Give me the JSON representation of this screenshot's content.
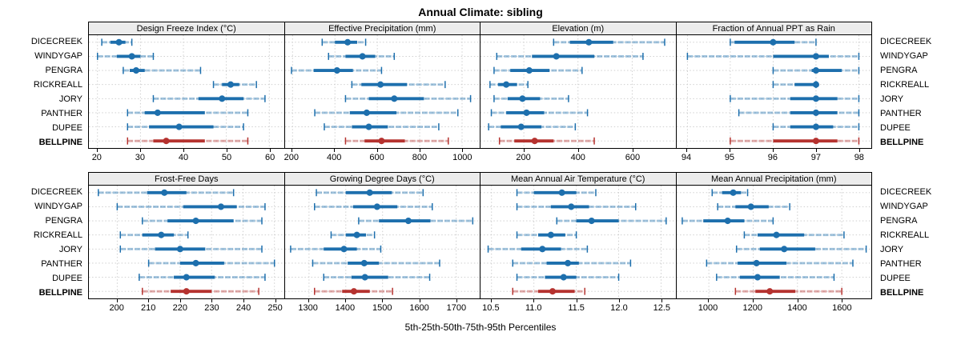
{
  "title": "Annual Climate: sibling",
  "caption": "5th-25th-50th-75th-95th Percentiles",
  "sites": [
    {
      "name": "DICECREEK",
      "bold": false
    },
    {
      "name": "WINDYGAP",
      "bold": false
    },
    {
      "name": "PENGRA",
      "bold": false
    },
    {
      "name": "RICKREALL",
      "bold": false
    },
    {
      "name": "JORY",
      "bold": false
    },
    {
      "name": "PANTHER",
      "bold": false
    },
    {
      "name": "DUPEE",
      "bold": false
    },
    {
      "name": "BELLPINE",
      "bold": true
    }
  ],
  "colors": {
    "series_default": "#1d6fad",
    "series_highlight": "#b5322f",
    "grid": "#c9c9c9",
    "strip_bg": "#ececec",
    "border": "#000000"
  },
  "chart_data": [
    {
      "type": "dotplot-percentiles",
      "title": "Design Freeze Index (°C)",
      "row": "top",
      "xlim": [
        18,
        63.4
      ],
      "ticks": {
        "values": [
          20,
          30,
          40,
          50,
          60
        ],
        "labels": [
          "20",
          "30",
          "40",
          "50",
          "60"
        ]
      },
      "percentile_labels": [
        "5th",
        "25th",
        "50th",
        "75th",
        "95th"
      ],
      "series": [
        {
          "site": "DICECREEK",
          "percentiles": [
            21,
            23,
            25,
            26.5,
            28
          ]
        },
        {
          "site": "WINDYGAP",
          "percentiles": [
            20,
            24.5,
            28,
            30,
            33
          ]
        },
        {
          "site": "PENGRA",
          "percentiles": [
            26,
            27.5,
            29,
            31,
            44
          ]
        },
        {
          "site": "RICKREALL",
          "percentiles": [
            47,
            49,
            51,
            53,
            57
          ]
        },
        {
          "site": "JORY",
          "percentiles": [
            33,
            43.5,
            49,
            54,
            59
          ]
        },
        {
          "site": "PANTHER",
          "percentiles": [
            27,
            31,
            34,
            45,
            55
          ]
        },
        {
          "site": "DUPEE",
          "percentiles": [
            27,
            32,
            39,
            47,
            54
          ]
        },
        {
          "site": "BELLPINE",
          "percentiles": [
            27,
            33,
            36,
            45,
            55
          ]
        }
      ]
    },
    {
      "type": "dotplot-percentiles",
      "title": "Effective Precipitation (mm)",
      "row": "top",
      "xlim": [
        165,
        1085
      ],
      "ticks": {
        "values": [
          200,
          400,
          600,
          800,
          1000
        ],
        "labels": [
          "200",
          "400",
          "600",
          "800",
          "1000"
        ]
      },
      "series": [
        {
          "site": "DICECREEK",
          "percentiles": [
            340,
            400,
            460,
            505,
            545
          ]
        },
        {
          "site": "WINDYGAP",
          "percentiles": [
            370,
            450,
            530,
            590,
            680
          ]
        },
        {
          "site": "PENGRA",
          "percentiles": [
            195,
            300,
            410,
            485,
            620
          ]
        },
        {
          "site": "RICKREALL",
          "percentiles": [
            480,
            525,
            615,
            740,
            920
          ]
        },
        {
          "site": "JORY",
          "percentiles": [
            450,
            560,
            680,
            820,
            1040
          ]
        },
        {
          "site": "PANTHER",
          "percentiles": [
            305,
            470,
            550,
            690,
            980
          ]
        },
        {
          "site": "DUPEE",
          "percentiles": [
            350,
            480,
            560,
            650,
            890
          ]
        },
        {
          "site": "BELLPINE",
          "percentiles": [
            450,
            540,
            620,
            730,
            935
          ]
        }
      ]
    },
    {
      "type": "dotplot-percentiles",
      "title": "Elevation (m)",
      "row": "top",
      "xlim": [
        40,
        760
      ],
      "ticks": {
        "values": [
          200,
          400,
          600
        ],
        "labels": [
          "200",
          "400",
          "600"
        ]
      },
      "series": [
        {
          "site": "DICECREEK",
          "percentiles": [
            310,
            370,
            440,
            530,
            720
          ]
        },
        {
          "site": "WINDYGAP",
          "percentiles": [
            100,
            230,
            320,
            460,
            640
          ]
        },
        {
          "site": "PENGRA",
          "percentiles": [
            90,
            150,
            220,
            295,
            415
          ]
        },
        {
          "site": "RICKREALL",
          "percentiles": [
            75,
            105,
            135,
            175,
            215
          ]
        },
        {
          "site": "JORY",
          "percentiles": [
            90,
            140,
            195,
            260,
            365
          ]
        },
        {
          "site": "PANTHER",
          "percentiles": [
            80,
            135,
            210,
            275,
            435
          ]
        },
        {
          "site": "DUPEE",
          "percentiles": [
            70,
            115,
            190,
            265,
            390
          ]
        },
        {
          "site": "BELLPINE",
          "percentiles": [
            110,
            165,
            240,
            310,
            460
          ]
        }
      ]
    },
    {
      "type": "dotplot-percentiles",
      "title": "Fraction of Annual PPT as Rain",
      "row": "top",
      "xlim": [
        93.75,
        98.3
      ],
      "ticks": {
        "values": [
          94,
          95,
          96,
          97,
          98
        ],
        "labels": [
          "94",
          "95",
          "96",
          "97",
          "98"
        ]
      },
      "series": [
        {
          "site": "DICECREEK",
          "percentiles": [
            95,
            95.1,
            96,
            96.5,
            97
          ]
        },
        {
          "site": "WINDYGAP",
          "percentiles": [
            94,
            96,
            97,
            97.3,
            98
          ]
        },
        {
          "site": "PENGRA",
          "percentiles": [
            96,
            96.9,
            97,
            97.6,
            98
          ]
        },
        {
          "site": "RICKREALL",
          "percentiles": [
            96,
            96.5,
            97,
            97,
            97
          ]
        },
        {
          "site": "JORY",
          "percentiles": [
            95,
            96.4,
            97,
            97.5,
            98
          ]
        },
        {
          "site": "PANTHER",
          "percentiles": [
            95.2,
            96.4,
            97,
            97.5,
            98
          ]
        },
        {
          "site": "DUPEE",
          "percentiles": [
            96,
            96.4,
            97,
            97.4,
            98
          ]
        },
        {
          "site": "BELLPINE",
          "percentiles": [
            95,
            96,
            97,
            97.5,
            98
          ]
        }
      ]
    },
    {
      "type": "dotplot-percentiles",
      "title": "Frost-Free Days",
      "row": "bottom",
      "xlim": [
        191,
        253
      ],
      "ticks": {
        "values": [
          200,
          210,
          220,
          230,
          240,
          250
        ],
        "labels": [
          "200",
          "210",
          "220",
          "230",
          "240",
          "250"
        ]
      },
      "series": [
        {
          "site": "DICECREEK",
          "percentiles": [
            194,
            209.5,
            215,
            222,
            237
          ]
        },
        {
          "site": "WINDYGAP",
          "percentiles": [
            200,
            221,
            233,
            238,
            247
          ]
        },
        {
          "site": "PENGRA",
          "percentiles": [
            208,
            216,
            225,
            237,
            246
          ]
        },
        {
          "site": "RICKREALL",
          "percentiles": [
            201,
            208,
            214,
            218,
            222.5
          ]
        },
        {
          "site": "JORY",
          "percentiles": [
            201,
            212,
            220,
            228,
            246
          ]
        },
        {
          "site": "PANTHER",
          "percentiles": [
            210,
            220,
            225,
            234,
            250
          ]
        },
        {
          "site": "DUPEE",
          "percentiles": [
            207,
            218,
            222,
            231,
            247
          ]
        },
        {
          "site": "BELLPINE",
          "percentiles": [
            208,
            217,
            222,
            230,
            245
          ]
        }
      ]
    },
    {
      "type": "dotplot-percentiles",
      "title": "Growing Degree Days (°C)",
      "row": "bottom",
      "xlim": [
        1235,
        1765
      ],
      "ticks": {
        "values": [
          1300,
          1400,
          1500,
          1600,
          1700
        ],
        "labels": [
          "1300",
          "1400",
          "1500",
          "1600",
          "1700"
        ]
      },
      "series": [
        {
          "site": "DICECREEK",
          "percentiles": [
            1320,
            1400,
            1465,
            1525,
            1610
          ]
        },
        {
          "site": "WINDYGAP",
          "percentiles": [
            1315,
            1420,
            1485,
            1540,
            1635
          ]
        },
        {
          "site": "PENGRA",
          "percentiles": [
            1435,
            1490,
            1570,
            1630,
            1745
          ]
        },
        {
          "site": "RICKREALL",
          "percentiles": [
            1360,
            1400,
            1430,
            1455,
            1478
          ]
        },
        {
          "site": "JORY",
          "percentiles": [
            1250,
            1340,
            1395,
            1430,
            1495
          ]
        },
        {
          "site": "PANTHER",
          "percentiles": [
            1310,
            1405,
            1450,
            1490,
            1655
          ]
        },
        {
          "site": "DUPEE",
          "percentiles": [
            1340,
            1415,
            1452,
            1515,
            1628
          ]
        },
        {
          "site": "BELLPINE",
          "percentiles": [
            1315,
            1390,
            1422,
            1465,
            1527
          ]
        }
      ]
    },
    {
      "type": "dotplot-percentiles",
      "title": "Mean Annual Air Temperature (°C)",
      "row": "bottom",
      "xlim": [
        10.37,
        12.67
      ],
      "ticks": {
        "values": [
          10.5,
          11.0,
          11.5,
          12.0,
          12.5
        ],
        "labels": [
          "10.5",
          "11.0",
          "11.5",
          "12.0",
          "12.5"
        ]
      },
      "series": [
        {
          "site": "DICECREEK",
          "percentiles": [
            10.8,
            11.0,
            11.33,
            11.5,
            11.73
          ]
        },
        {
          "site": "WINDYGAP",
          "percentiles": [
            10.8,
            11.2,
            11.44,
            11.65,
            12.2
          ]
        },
        {
          "site": "PENGRA",
          "percentiles": [
            11.27,
            11.5,
            11.68,
            12.0,
            12.56
          ]
        },
        {
          "site": "RICKREALL",
          "percentiles": [
            10.8,
            11.05,
            11.2,
            11.37,
            11.5
          ]
        },
        {
          "site": "JORY",
          "percentiles": [
            10.46,
            10.85,
            11.1,
            11.32,
            11.63
          ]
        },
        {
          "site": "PANTHER",
          "percentiles": [
            10.75,
            11.15,
            11.4,
            11.53,
            12.14
          ]
        },
        {
          "site": "DUPEE",
          "percentiles": [
            10.8,
            11.13,
            11.35,
            11.5,
            12.0
          ]
        },
        {
          "site": "BELLPINE",
          "percentiles": [
            10.75,
            11.05,
            11.22,
            11.48,
            11.6
          ]
        }
      ]
    },
    {
      "type": "dotplot-percentiles",
      "title": "Mean Annual Precipitation (mm)",
      "row": "bottom",
      "xlim": [
        855,
        1735
      ],
      "ticks": {
        "values": [
          1000,
          1200,
          1400,
          1600
        ],
        "labels": [
          "1000",
          "1200",
          "1400",
          "1600"
        ]
      },
      "series": [
        {
          "site": "DICECREEK",
          "percentiles": [
            1015,
            1060,
            1110,
            1145,
            1175
          ]
        },
        {
          "site": "WINDYGAP",
          "percentiles": [
            1040,
            1120,
            1190,
            1270,
            1365
          ]
        },
        {
          "site": "PENGRA",
          "percentiles": [
            880,
            975,
            1085,
            1160,
            1290
          ]
        },
        {
          "site": "RICKREALL",
          "percentiles": [
            1160,
            1220,
            1305,
            1430,
            1610
          ]
        },
        {
          "site": "JORY",
          "percentiles": [
            1125,
            1230,
            1340,
            1480,
            1710
          ]
        },
        {
          "site": "PANTHER",
          "percentiles": [
            990,
            1130,
            1215,
            1350,
            1650
          ]
        },
        {
          "site": "DUPEE",
          "percentiles": [
            1035,
            1140,
            1220,
            1320,
            1565
          ]
        },
        {
          "site": "BELLPINE",
          "percentiles": [
            1120,
            1210,
            1275,
            1390,
            1600
          ]
        }
      ]
    }
  ]
}
